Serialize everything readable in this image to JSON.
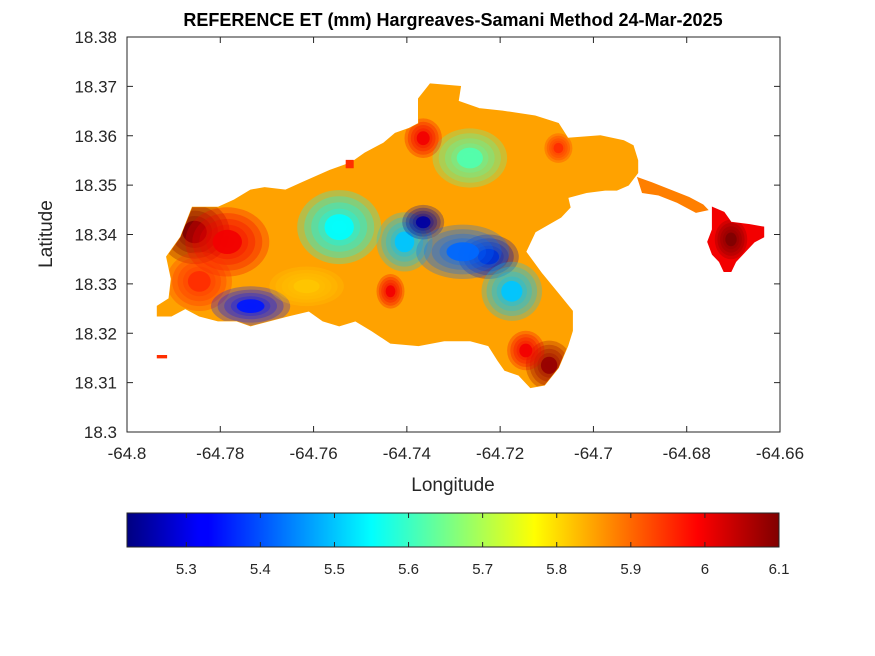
{
  "chart_data": {
    "type": "heatmap",
    "title": "REFERENCE ET (mm) Hargreaves-Samani Method  24-Mar-2025",
    "xlabel": "Longitude",
    "ylabel": "Latitude",
    "xlim": [
      -64.8,
      -64.66
    ],
    "ylim": [
      18.3,
      18.38
    ],
    "xticks": [
      -64.8,
      -64.78,
      -64.76,
      -64.74,
      -64.72,
      -64.7,
      -64.68,
      -64.66
    ],
    "yticks": [
      18.3,
      18.31,
      18.32,
      18.33,
      18.34,
      18.35,
      18.36,
      18.37,
      18.38
    ],
    "xtick_labels": [
      "-64.8",
      "-64.78",
      "-64.76",
      "-64.74",
      "-64.72",
      "-64.7",
      "-64.68",
      "-64.66"
    ],
    "ytick_labels": [
      "18.3",
      "18.31",
      "18.32",
      "18.33",
      "18.34",
      "18.35",
      "18.36",
      "18.37",
      "18.38"
    ],
    "colormap": "jet",
    "colorbar": {
      "orientation": "horizontal",
      "location": "bottom",
      "range": [
        5.22,
        6.1
      ],
      "ticks": [
        5.3,
        5.4,
        5.5,
        5.6,
        5.7,
        5.8,
        5.9,
        6,
        6.1
      ],
      "tick_labels": [
        "5.3",
        "5.4",
        "5.5",
        "5.6",
        "5.7",
        "5.8",
        "5.9",
        "6",
        "6.1"
      ]
    },
    "grid": false,
    "box": true,
    "regions": [
      {
        "name": "main-island",
        "base_value": 5.85,
        "outline": [
          [
            -64.7935,
            18.3235
          ],
          [
            -64.7935,
            18.3255
          ],
          [
            -64.791,
            18.327
          ],
          [
            -64.7905,
            18.331
          ],
          [
            -64.7915,
            18.3355
          ],
          [
            -64.7885,
            18.3395
          ],
          [
            -64.786,
            18.3455
          ],
          [
            -64.7805,
            18.3455
          ],
          [
            -64.777,
            18.347
          ],
          [
            -64.7735,
            18.349
          ],
          [
            -64.7705,
            18.3495
          ],
          [
            -64.766,
            18.349
          ],
          [
            -64.7625,
            18.3505
          ],
          [
            -64.7565,
            18.353
          ],
          [
            -64.752,
            18.3545
          ],
          [
            -64.749,
            18.3565
          ],
          [
            -64.745,
            18.3585
          ],
          [
            -64.7425,
            18.3605
          ],
          [
            -64.7395,
            18.3615
          ],
          [
            -64.7375,
            18.3625
          ],
          [
            -64.7375,
            18.3675
          ],
          [
            -64.735,
            18.3705
          ],
          [
            -64.7285,
            18.37
          ],
          [
            -64.729,
            18.367
          ],
          [
            -64.7245,
            18.3655
          ],
          [
            -64.7195,
            18.365
          ],
          [
            -64.7125,
            18.364
          ],
          [
            -64.7075,
            18.3625
          ],
          [
            -64.7055,
            18.3595
          ],
          [
            -64.6985,
            18.36
          ],
          [
            -64.6935,
            18.359
          ],
          [
            -64.6915,
            18.358
          ],
          [
            -64.6905,
            18.355
          ],
          [
            -64.6905,
            18.3525
          ],
          [
            -64.6925,
            18.35
          ],
          [
            -64.695,
            18.349
          ],
          [
            -64.6975,
            18.349
          ],
          [
            -64.7015,
            18.3485
          ],
          [
            -64.7055,
            18.3475
          ],
          [
            -64.705,
            18.3455
          ],
          [
            -64.707,
            18.3435
          ],
          [
            -64.7125,
            18.3405
          ],
          [
            -64.7145,
            18.3365
          ],
          [
            -64.711,
            18.332
          ],
          [
            -64.7075,
            18.328
          ],
          [
            -64.7045,
            18.3245
          ],
          [
            -64.7045,
            18.3205
          ],
          [
            -64.7055,
            18.3175
          ],
          [
            -64.7075,
            18.313
          ],
          [
            -64.7105,
            18.3095
          ],
          [
            -64.7135,
            18.309
          ],
          [
            -64.716,
            18.3115
          ],
          [
            -64.719,
            18.3125
          ],
          [
            -64.7205,
            18.3145
          ],
          [
            -64.7225,
            18.3175
          ],
          [
            -64.7265,
            18.3185
          ],
          [
            -64.732,
            18.3185
          ],
          [
            -64.7375,
            18.3175
          ],
          [
            -64.7435,
            18.318
          ],
          [
            -64.7475,
            18.3205
          ],
          [
            -64.751,
            18.3225
          ],
          [
            -64.7545,
            18.3215
          ],
          [
            -64.758,
            18.3225
          ],
          [
            -64.761,
            18.3245
          ],
          [
            -64.7655,
            18.3235
          ],
          [
            -64.7695,
            18.3225
          ],
          [
            -64.7735,
            18.3215
          ],
          [
            -64.7765,
            18.3225
          ],
          [
            -64.7805,
            18.3225
          ],
          [
            -64.7845,
            18.3235
          ],
          [
            -64.7875,
            18.325
          ],
          [
            -64.7905,
            18.3235
          ]
        ]
      },
      {
        "name": "east-cay",
        "base_value": 6.0,
        "outline": [
          [
            -64.6745,
            18.3455
          ],
          [
            -64.672,
            18.3445
          ],
          [
            -64.6705,
            18.3425
          ],
          [
            -64.6665,
            18.342
          ],
          [
            -64.6635,
            18.3415
          ],
          [
            -64.6635,
            18.3395
          ],
          [
            -64.6655,
            18.3385
          ],
          [
            -64.6675,
            18.3365
          ],
          [
            -64.6695,
            18.3345
          ],
          [
            -64.6705,
            18.3325
          ],
          [
            -64.672,
            18.3325
          ],
          [
            -64.673,
            18.3345
          ],
          [
            -64.6745,
            18.336
          ],
          [
            -64.6755,
            18.3385
          ],
          [
            -64.6745,
            18.341
          ]
        ]
      },
      {
        "name": "east-spit",
        "base_value": 5.88,
        "outline": [
          [
            -64.6905,
            18.3515
          ],
          [
            -64.6875,
            18.3505
          ],
          [
            -64.6835,
            18.349
          ],
          [
            -64.6795,
            18.3475
          ],
          [
            -64.6765,
            18.346
          ],
          [
            -64.6755,
            18.345
          ],
          [
            -64.678,
            18.3445
          ],
          [
            -64.682,
            18.3465
          ],
          [
            -64.686,
            18.348
          ],
          [
            -64.6895,
            18.3485
          ]
        ]
      },
      {
        "name": "islet-west",
        "base_value": 5.95,
        "outline": [
          [
            -64.7935,
            18.3155
          ],
          [
            -64.7915,
            18.3155
          ],
          [
            -64.7915,
            18.315
          ],
          [
            -64.7935,
            18.315
          ]
        ]
      },
      {
        "name": "islet-north",
        "base_value": 5.95,
        "outline": [
          [
            -64.753,
            18.355
          ],
          [
            -64.7515,
            18.355
          ],
          [
            -64.7515,
            18.3535
          ],
          [
            -64.753,
            18.3535
          ]
        ]
      }
    ],
    "hotspots": [
      {
        "name": "west-hot-core",
        "lon": -64.7855,
        "lat": 18.3405,
        "r_lon": 0.0075,
        "r_lat": 0.0065,
        "value": 6.1
      },
      {
        "name": "west-hot",
        "lon": -64.7785,
        "lat": 18.3385,
        "r_lon": 0.009,
        "r_lat": 0.007,
        "value": 6.0
      },
      {
        "name": "west-hot-south",
        "lon": -64.7845,
        "lat": 18.3305,
        "r_lon": 0.007,
        "r_lat": 0.006,
        "value": 5.95
      },
      {
        "name": "southwest-cool",
        "lon": -64.7735,
        "lat": 18.3255,
        "r_lon": 0.0085,
        "r_lat": 0.004,
        "value": 5.35
      },
      {
        "name": "central-cool",
        "lon": -64.7545,
        "lat": 18.3415,
        "r_lon": 0.009,
        "r_lat": 0.0075,
        "value": 5.55
      },
      {
        "name": "north-cool",
        "lon": -64.7265,
        "lat": 18.3555,
        "r_lon": 0.008,
        "r_lat": 0.006,
        "value": 5.62
      },
      {
        "name": "centre-cool-2",
        "lon": -64.7405,
        "lat": 18.3385,
        "r_lon": 0.006,
        "r_lat": 0.006,
        "value": 5.5
      },
      {
        "name": "blue-core-1",
        "lon": -64.7365,
        "lat": 18.3425,
        "r_lon": 0.0045,
        "r_lat": 0.0035,
        "value": 5.25
      },
      {
        "name": "blue-core-2",
        "lon": -64.7225,
        "lat": 18.3355,
        "r_lon": 0.0065,
        "r_lat": 0.0045,
        "value": 5.26
      },
      {
        "name": "blue-band",
        "lon": -64.728,
        "lat": 18.3365,
        "r_lon": 0.01,
        "r_lat": 0.0055,
        "value": 5.42
      },
      {
        "name": "southeast-cool",
        "lon": -64.7175,
        "lat": 18.3285,
        "r_lon": 0.0065,
        "r_lat": 0.006,
        "value": 5.5
      },
      {
        "name": "central-hot-pocket",
        "lon": -64.7435,
        "lat": 18.3285,
        "r_lon": 0.003,
        "r_lat": 0.0035,
        "value": 6.0
      },
      {
        "name": "south-warm",
        "lon": -64.7615,
        "lat": 18.3295,
        "r_lon": 0.008,
        "r_lat": 0.004,
        "value": 5.82
      },
      {
        "name": "southeast-hot",
        "lon": -64.7095,
        "lat": 18.3135,
        "r_lon": 0.005,
        "r_lat": 0.005,
        "value": 6.08
      },
      {
        "name": "southeast-hot-2",
        "lon": -64.7145,
        "lat": 18.3165,
        "r_lon": 0.004,
        "r_lat": 0.004,
        "value": 6.0
      },
      {
        "name": "north-hot",
        "lon": -64.7365,
        "lat": 18.3595,
        "r_lon": 0.004,
        "r_lat": 0.004,
        "value": 6.0
      },
      {
        "name": "northeast-hot",
        "lon": -64.7075,
        "lat": 18.3575,
        "r_lon": 0.003,
        "r_lat": 0.003,
        "value": 5.95
      },
      {
        "name": "east-cay-hot",
        "lon": -64.6705,
        "lat": 18.339,
        "r_lon": 0.0035,
        "r_lat": 0.004,
        "value": 6.1
      }
    ]
  }
}
